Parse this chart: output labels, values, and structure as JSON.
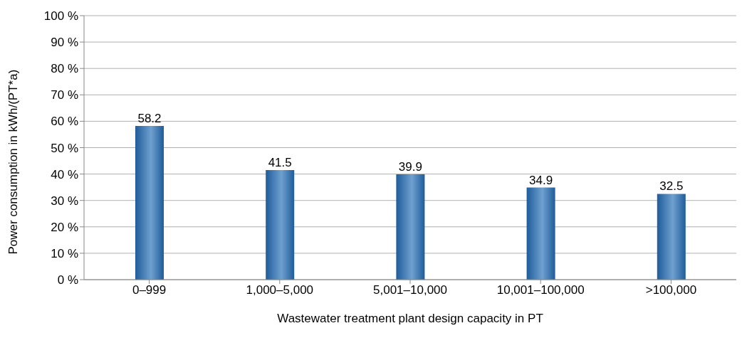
{
  "chart_data": {
    "type": "bar",
    "xlabel": "Wastewater treatment plant design capacity in PT",
    "ylabel": "Power consumption in kWh/(PT*a)",
    "categories": [
      "0–999",
      "1,000–5,000",
      "5,001–10,000",
      "10,001–100,000",
      ">100,000"
    ],
    "values": [
      58.2,
      41.5,
      39.9,
      34.9,
      32.5
    ],
    "color": "#1f5c99",
    "ylim": [
      0,
      100
    ],
    "yticks": [
      {
        "value": 0,
        "label": "0 %"
      },
      {
        "value": 10,
        "label": "10 %"
      },
      {
        "value": 20,
        "label": "20 %"
      },
      {
        "value": 30,
        "label": "30 %"
      },
      {
        "value": 40,
        "label": "40 %"
      },
      {
        "value": 50,
        "label": "50 %"
      },
      {
        "value": 60,
        "label": "60 %"
      },
      {
        "value": 70,
        "label": "70 %"
      },
      {
        "value": 80,
        "label": "80 %"
      },
      {
        "value": 90,
        "label": "90 %"
      },
      {
        "value": 100,
        "label": "100 %"
      }
    ],
    "grid": "y",
    "data_labels": true
  }
}
